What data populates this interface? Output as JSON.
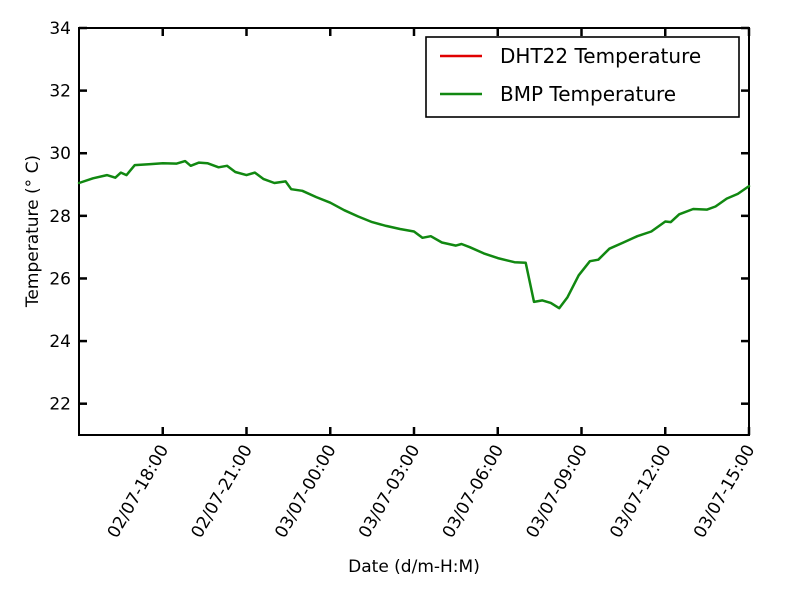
{
  "chart_data": {
    "type": "line",
    "title": "",
    "xlabel": "Date (d/m-H:M)",
    "ylabel": "Temperature ($^\\circ C$)",
    "ylabel_display": "Temperature (° C)",
    "x_unit": "hours since 02/07-15:00",
    "xlim": [
      0,
      24
    ],
    "ylim": [
      21,
      34
    ],
    "yticks": [
      22,
      24,
      26,
      28,
      30,
      32,
      34
    ],
    "xticks": [
      {
        "x": 3,
        "label": "02/07-18:00"
      },
      {
        "x": 6,
        "label": "02/07-21:00"
      },
      {
        "x": 9,
        "label": "03/07-00:00"
      },
      {
        "x": 12,
        "label": "03/07-03:00"
      },
      {
        "x": 15,
        "label": "03/07-06:00"
      },
      {
        "x": 18,
        "label": "03/07-09:00"
      },
      {
        "x": 21,
        "label": "03/07-12:00"
      },
      {
        "x": 24,
        "label": "03/07-15:00"
      }
    ],
    "legend_position": "top-right",
    "series": [
      {
        "name": "DHT22 Temperature",
        "color": "#e00000",
        "x": [],
        "values": []
      },
      {
        "name": "BMP Temperature",
        "color": "#118811",
        "x": [
          0,
          0.5,
          1.0,
          1.3,
          1.5,
          1.7,
          2.0,
          2.5,
          3.0,
          3.5,
          3.8,
          4.0,
          4.3,
          4.6,
          5.0,
          5.3,
          5.6,
          6.0,
          6.3,
          6.6,
          7.0,
          7.4,
          7.6,
          8.0,
          8.5,
          9.0,
          9.5,
          10.0,
          10.5,
          11.0,
          11.5,
          12.0,
          12.3,
          12.6,
          13.0,
          13.5,
          13.7,
          14.0,
          14.5,
          15.0,
          15.6,
          16.0,
          16.3,
          16.6,
          16.9,
          17.2,
          17.5,
          17.9,
          18.3,
          18.6,
          19.0,
          19.5,
          20.0,
          20.5,
          21.0,
          21.2,
          21.5,
          22.0,
          22.5,
          22.8,
          23.2,
          23.6,
          24.0
        ],
        "values": [
          29.05,
          29.2,
          29.3,
          29.22,
          29.38,
          29.3,
          29.62,
          29.65,
          29.68,
          29.67,
          29.75,
          29.6,
          29.7,
          29.68,
          29.55,
          29.6,
          29.4,
          29.3,
          29.38,
          29.18,
          29.05,
          29.1,
          28.85,
          28.8,
          28.6,
          28.42,
          28.18,
          27.98,
          27.8,
          27.68,
          27.58,
          27.5,
          27.3,
          27.35,
          27.15,
          27.05,
          27.1,
          27.0,
          26.8,
          26.65,
          26.52,
          26.5,
          25.25,
          25.3,
          25.22,
          25.05,
          25.4,
          26.1,
          26.55,
          26.6,
          26.95,
          27.15,
          27.35,
          27.5,
          27.82,
          27.8,
          28.05,
          28.22,
          28.2,
          28.3,
          28.55,
          28.7,
          28.95
        ]
      }
    ]
  }
}
